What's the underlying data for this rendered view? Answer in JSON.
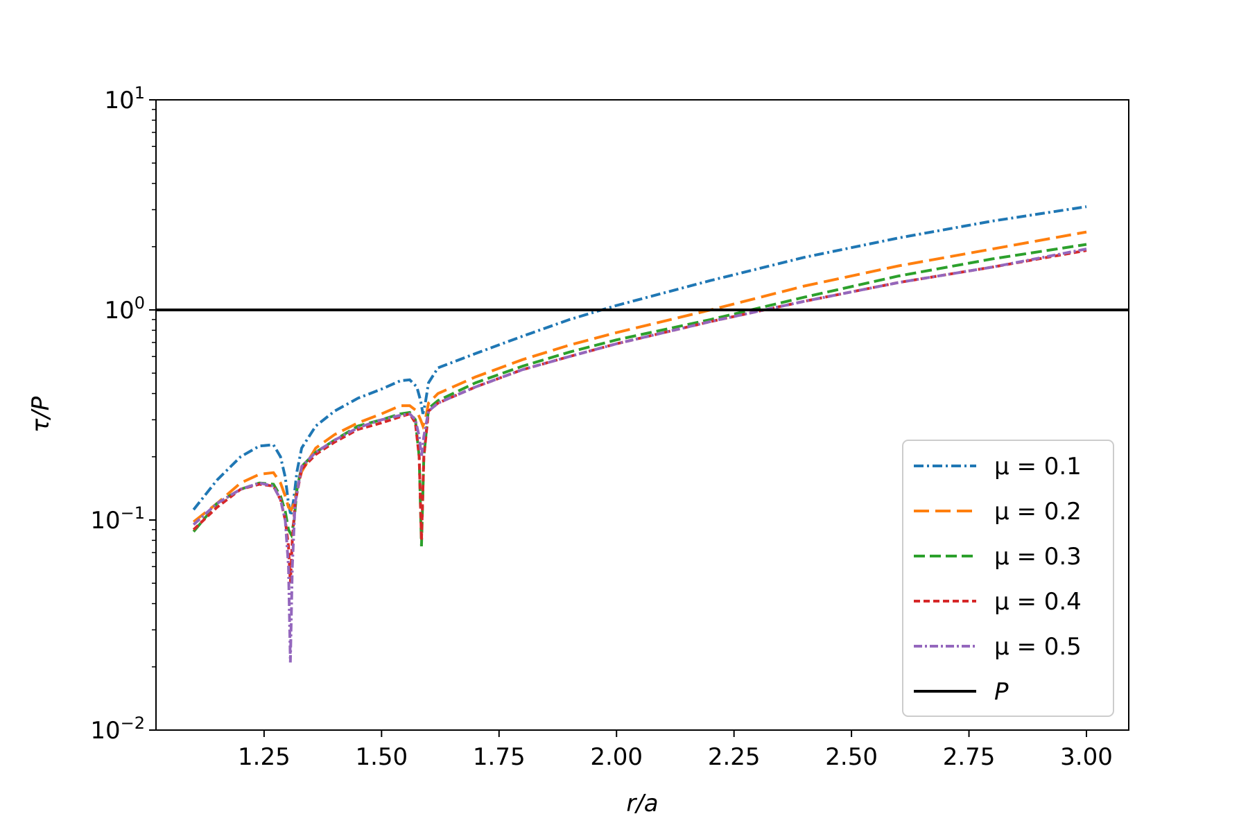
{
  "chart_data": {
    "type": "line",
    "xlabel": "r/a",
    "ylabel": "τ/P",
    "xlim": [
      1.02,
      3.09
    ],
    "ylim": [
      0.01,
      10
    ],
    "yscale": "log",
    "x_ticks": [
      "1.25",
      "1.50",
      "1.75",
      "2.00",
      "2.25",
      "2.50",
      "2.75",
      "3.00"
    ],
    "y_ticks": [
      {
        "base": "10",
        "exp": "1"
      },
      {
        "base": "10",
        "exp": "0"
      },
      {
        "base": "10",
        "exp": "−1"
      },
      {
        "base": "10",
        "exp": "−2"
      }
    ],
    "grid": false,
    "legend_position": "lower right",
    "series": [
      {
        "name": "μ = 0.1",
        "color": "#1f77b4",
        "points": [
          [
            1.1,
            0.112
          ],
          [
            1.15,
            0.155
          ],
          [
            1.2,
            0.2
          ],
          [
            1.24,
            0.225
          ],
          [
            1.27,
            0.228
          ],
          [
            1.285,
            0.2
          ],
          [
            1.295,
            0.16
          ],
          [
            1.302,
            0.12
          ],
          [
            1.307,
            0.105
          ],
          [
            1.313,
            0.125
          ],
          [
            1.32,
            0.17
          ],
          [
            1.33,
            0.22
          ],
          [
            1.36,
            0.28
          ],
          [
            1.4,
            0.33
          ],
          [
            1.45,
            0.38
          ],
          [
            1.5,
            0.42
          ],
          [
            1.54,
            0.46
          ],
          [
            1.56,
            0.465
          ],
          [
            1.575,
            0.43
          ],
          [
            1.583,
            0.37
          ],
          [
            1.588,
            0.32
          ],
          [
            1.593,
            0.36
          ],
          [
            1.6,
            0.45
          ],
          [
            1.62,
            0.53
          ],
          [
            1.7,
            0.62
          ],
          [
            1.8,
            0.75
          ],
          [
            1.9,
            0.9
          ],
          [
            2.0,
            1.05
          ],
          [
            2.2,
            1.38
          ],
          [
            2.4,
            1.78
          ],
          [
            2.6,
            2.2
          ],
          [
            2.8,
            2.65
          ],
          [
            3.0,
            3.1
          ]
        ]
      },
      {
        "name": "μ = 0.2",
        "color": "#ff7f0e",
        "points": [
          [
            1.1,
            0.098
          ],
          [
            1.15,
            0.12
          ],
          [
            1.2,
            0.15
          ],
          [
            1.24,
            0.165
          ],
          [
            1.27,
            0.168
          ],
          [
            1.285,
            0.15
          ],
          [
            1.295,
            0.13
          ],
          [
            1.302,
            0.115
          ],
          [
            1.308,
            0.112
          ],
          [
            1.314,
            0.12
          ],
          [
            1.32,
            0.14
          ],
          [
            1.33,
            0.17
          ],
          [
            1.36,
            0.22
          ],
          [
            1.4,
            0.255
          ],
          [
            1.45,
            0.29
          ],
          [
            1.5,
            0.32
          ],
          [
            1.54,
            0.35
          ],
          [
            1.56,
            0.35
          ],
          [
            1.575,
            0.33
          ],
          [
            1.583,
            0.3
          ],
          [
            1.588,
            0.28
          ],
          [
            1.593,
            0.3
          ],
          [
            1.6,
            0.36
          ],
          [
            1.62,
            0.4
          ],
          [
            1.7,
            0.48
          ],
          [
            1.8,
            0.58
          ],
          [
            1.9,
            0.68
          ],
          [
            2.0,
            0.78
          ],
          [
            2.2,
            1.0
          ],
          [
            2.4,
            1.3
          ],
          [
            2.6,
            1.62
          ],
          [
            2.8,
            1.95
          ],
          [
            3.0,
            2.35
          ]
        ]
      },
      {
        "name": "μ = 0.3",
        "color": "#2ca02c",
        "points": [
          [
            1.1,
            0.088
          ],
          [
            1.15,
            0.12
          ],
          [
            1.2,
            0.14
          ],
          [
            1.24,
            0.15
          ],
          [
            1.27,
            0.148
          ],
          [
            1.285,
            0.13
          ],
          [
            1.295,
            0.11
          ],
          [
            1.302,
            0.09
          ],
          [
            1.308,
            0.085
          ],
          [
            1.314,
            0.1
          ],
          [
            1.32,
            0.14
          ],
          [
            1.33,
            0.18
          ],
          [
            1.36,
            0.21
          ],
          [
            1.4,
            0.24
          ],
          [
            1.45,
            0.28
          ],
          [
            1.5,
            0.3
          ],
          [
            1.54,
            0.32
          ],
          [
            1.56,
            0.325
          ],
          [
            1.572,
            0.3
          ],
          [
            1.58,
            0.2
          ],
          [
            1.585,
            0.075
          ],
          [
            1.59,
            0.2
          ],
          [
            1.6,
            0.34
          ],
          [
            1.62,
            0.37
          ],
          [
            1.7,
            0.45
          ],
          [
            1.8,
            0.54
          ],
          [
            1.9,
            0.63
          ],
          [
            2.0,
            0.72
          ],
          [
            2.2,
            0.9
          ],
          [
            2.4,
            1.15
          ],
          [
            2.6,
            1.45
          ],
          [
            2.8,
            1.75
          ],
          [
            3.0,
            2.05
          ]
        ]
      },
      {
        "name": "μ = 0.4",
        "color": "#d62728",
        "points": [
          [
            1.1,
            0.09
          ],
          [
            1.15,
            0.115
          ],
          [
            1.2,
            0.14
          ],
          [
            1.24,
            0.148
          ],
          [
            1.27,
            0.145
          ],
          [
            1.285,
            0.125
          ],
          [
            1.295,
            0.1
          ],
          [
            1.302,
            0.075
          ],
          [
            1.306,
            0.05
          ],
          [
            1.31,
            0.08
          ],
          [
            1.316,
            0.12
          ],
          [
            1.33,
            0.175
          ],
          [
            1.36,
            0.205
          ],
          [
            1.4,
            0.235
          ],
          [
            1.45,
            0.27
          ],
          [
            1.5,
            0.29
          ],
          [
            1.54,
            0.31
          ],
          [
            1.56,
            0.32
          ],
          [
            1.572,
            0.29
          ],
          [
            1.58,
            0.2
          ],
          [
            1.585,
            0.08
          ],
          [
            1.59,
            0.2
          ],
          [
            1.6,
            0.33
          ],
          [
            1.62,
            0.36
          ],
          [
            1.7,
            0.43
          ],
          [
            1.8,
            0.52
          ],
          [
            1.9,
            0.6
          ],
          [
            2.0,
            0.69
          ],
          [
            2.2,
            0.88
          ],
          [
            2.4,
            1.1
          ],
          [
            2.6,
            1.35
          ],
          [
            2.8,
            1.6
          ],
          [
            3.0,
            1.92
          ]
        ]
      },
      {
        "name": "μ = 0.5",
        "color": "#9467bd",
        "points": [
          [
            1.1,
            0.095
          ],
          [
            1.15,
            0.12
          ],
          [
            1.2,
            0.14
          ],
          [
            1.24,
            0.15
          ],
          [
            1.27,
            0.145
          ],
          [
            1.285,
            0.125
          ],
          [
            1.295,
            0.1
          ],
          [
            1.302,
            0.06
          ],
          [
            1.306,
            0.021
          ],
          [
            1.31,
            0.06
          ],
          [
            1.316,
            0.12
          ],
          [
            1.33,
            0.18
          ],
          [
            1.36,
            0.21
          ],
          [
            1.4,
            0.24
          ],
          [
            1.45,
            0.275
          ],
          [
            1.5,
            0.3
          ],
          [
            1.54,
            0.315
          ],
          [
            1.56,
            0.32
          ],
          [
            1.572,
            0.3
          ],
          [
            1.58,
            0.25
          ],
          [
            1.585,
            0.2
          ],
          [
            1.59,
            0.25
          ],
          [
            1.6,
            0.33
          ],
          [
            1.62,
            0.36
          ],
          [
            1.7,
            0.43
          ],
          [
            1.8,
            0.52
          ],
          [
            1.9,
            0.6
          ],
          [
            2.0,
            0.69
          ],
          [
            2.2,
            0.88
          ],
          [
            2.4,
            1.1
          ],
          [
            2.6,
            1.35
          ],
          [
            2.8,
            1.6
          ],
          [
            3.0,
            1.95
          ]
        ]
      },
      {
        "name": "P",
        "color": "#000000",
        "points": [
          [
            1.02,
            1.0
          ],
          [
            3.09,
            1.0
          ]
        ]
      }
    ]
  }
}
